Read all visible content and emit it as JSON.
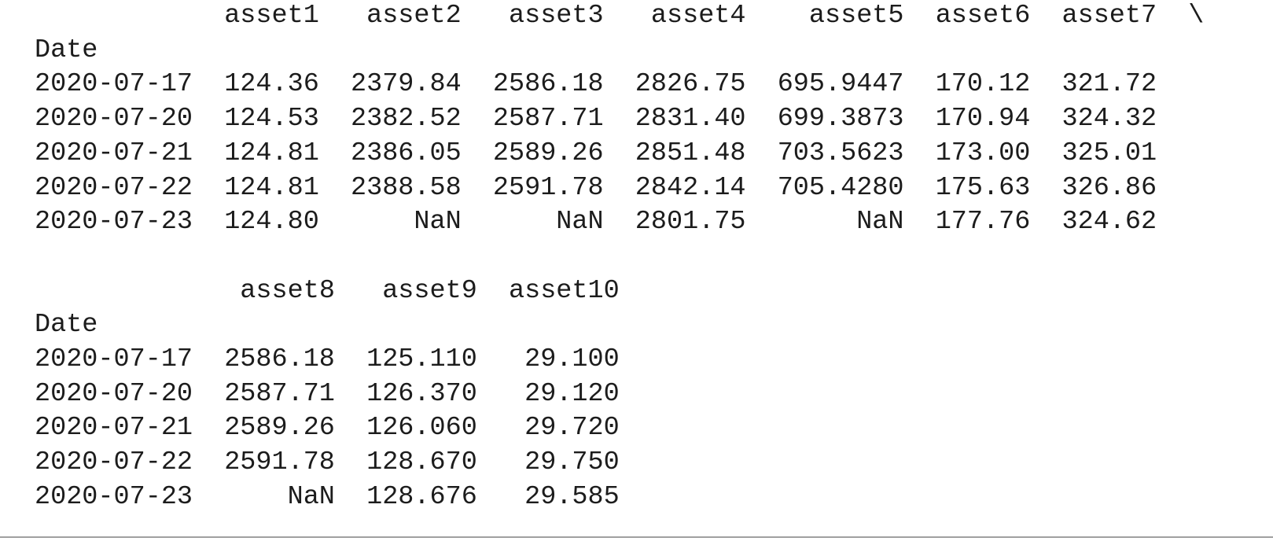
{
  "blocks": [
    {
      "columns": [
        "asset1",
        "asset2",
        "asset3",
        "asset4",
        "asset5",
        "asset6",
        "asset7"
      ],
      "continuation": "\\",
      "index_name": "Date",
      "rows": [
        {
          "index": "2020-07-17",
          "values": [
            "124.36",
            "2379.84",
            "2586.18",
            "2826.75",
            "695.9447",
            "170.12",
            "321.72"
          ]
        },
        {
          "index": "2020-07-20",
          "values": [
            "124.53",
            "2382.52",
            "2587.71",
            "2831.40",
            "699.3873",
            "170.94",
            "324.32"
          ]
        },
        {
          "index": "2020-07-21",
          "values": [
            "124.81",
            "2386.05",
            "2589.26",
            "2851.48",
            "703.5623",
            "173.00",
            "325.01"
          ]
        },
        {
          "index": "2020-07-22",
          "values": [
            "124.81",
            "2388.58",
            "2591.78",
            "2842.14",
            "705.4280",
            "175.63",
            "326.86"
          ]
        },
        {
          "index": "2020-07-23",
          "values": [
            "124.80",
            "NaN",
            "NaN",
            "2801.75",
            "NaN",
            "177.76",
            "324.62"
          ]
        }
      ]
    },
    {
      "columns": [
        "asset8",
        "asset9",
        "asset10"
      ],
      "index_name": "Date",
      "rows": [
        {
          "index": "2020-07-17",
          "values": [
            "2586.18",
            "125.110",
            "29.100"
          ]
        },
        {
          "index": "2020-07-20",
          "values": [
            "2587.71",
            "126.370",
            "29.120"
          ]
        },
        {
          "index": "2020-07-21",
          "values": [
            "2589.26",
            "126.060",
            "29.720"
          ]
        },
        {
          "index": "2020-07-22",
          "values": [
            "2591.78",
            "128.670",
            "29.750"
          ]
        },
        {
          "index": "2020-07-23",
          "values": [
            "NaN",
            "128.676",
            "29.585"
          ]
        }
      ]
    }
  ]
}
